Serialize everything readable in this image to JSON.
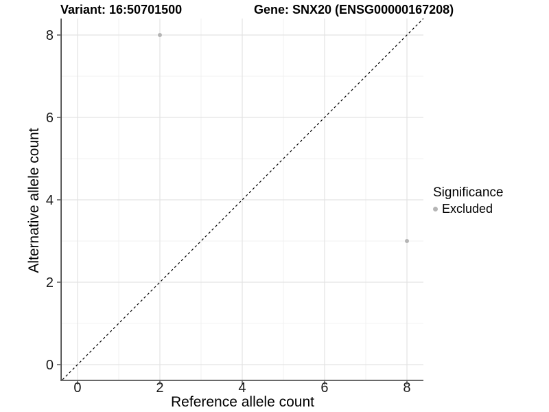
{
  "chart_data": {
    "type": "scatter",
    "titles": {
      "left": "Variant: 16:50701500",
      "right": "Gene: SNX20 (ENSG00000167208)"
    },
    "xlabel": "Reference allele count",
    "ylabel": "Alternative allele count",
    "xlim": [
      -0.383,
      8.4
    ],
    "ylim": [
      -0.367,
      8.4
    ],
    "xticks": [
      0,
      2,
      4,
      6,
      8
    ],
    "yticks": [
      0,
      2,
      4,
      6,
      8
    ],
    "minor_xticks": [
      1,
      3,
      5,
      7
    ],
    "minor_yticks": [
      1,
      3,
      5,
      7
    ],
    "grid": true,
    "series": [
      {
        "name": "Excluded",
        "color": "#b5b5b5",
        "points": [
          {
            "x": 2,
            "y": 8
          },
          {
            "x": 8,
            "y": 3
          }
        ]
      }
    ],
    "reference_line": {
      "type": "identity",
      "slope": 1,
      "intercept": 0,
      "style": "dashed",
      "color": "#000000"
    },
    "legend": {
      "title": "Significance",
      "position": "right",
      "items": [
        {
          "label": "Excluded",
          "color": "#b5b5b5"
        }
      ]
    },
    "colors": {
      "background": "#ffffff",
      "major_grid": "#e3e3e3",
      "minor_grid": "#f0f0f0",
      "axis_line": "#4d4d4d",
      "tick_mark": "#4d4d4d",
      "tick_label": "#1a1a1a",
      "title_text": "#000000"
    }
  }
}
